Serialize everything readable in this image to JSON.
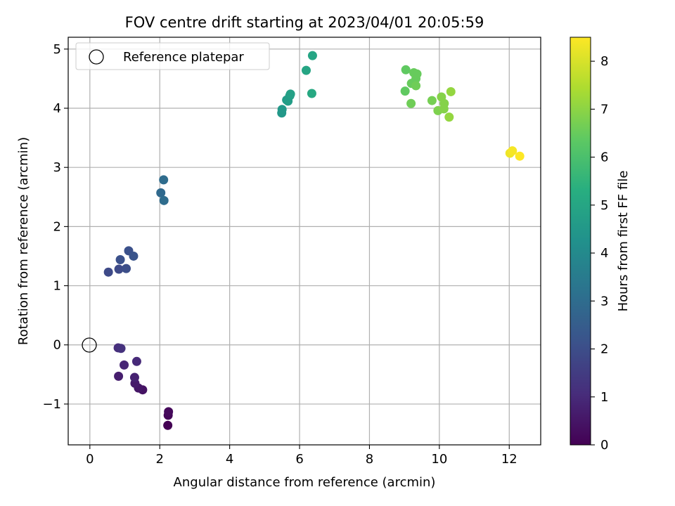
{
  "chart_data": {
    "type": "scatter",
    "title": "FOV centre drift starting at 2023/04/01 20:05:59",
    "xlabel": "Angular distance from reference (arcmin)",
    "ylabel": "Rotation from reference (arcmin)",
    "xlim": [
      -0.62,
      12.9
    ],
    "ylim": [
      -1.69,
      5.2
    ],
    "xticks": [
      0,
      2,
      4,
      6,
      8,
      10,
      12
    ],
    "xtick_labels": [
      "0",
      "2",
      "4",
      "6",
      "8",
      "10",
      "12"
    ],
    "yticks": [
      -1,
      0,
      1,
      2,
      3,
      4,
      5
    ],
    "ytick_labels": [
      "−1",
      "0",
      "1",
      "2",
      "3",
      "4",
      "5"
    ],
    "grid": true,
    "legend": {
      "placement": "top-left",
      "entries": [
        "Reference platepar"
      ]
    },
    "reference_point": {
      "x": 0,
      "y": 0,
      "marker": "open-circle"
    },
    "colorbar": {
      "label": "Hours from first FF file",
      "range": [
        0,
        8.5
      ],
      "ticks": [
        0,
        1,
        2,
        3,
        4,
        5,
        6,
        7,
        8
      ],
      "colormap": "viridis"
    },
    "points": [
      {
        "x": 2.23,
        "y": -1.36,
        "c": 0.0
      },
      {
        "x": 2.24,
        "y": -1.19,
        "c": 0.1
      },
      {
        "x": 2.25,
        "y": -1.13,
        "c": 0.2
      },
      {
        "x": 1.51,
        "y": -0.76,
        "c": 0.4
      },
      {
        "x": 1.39,
        "y": -0.73,
        "c": 0.5
      },
      {
        "x": 1.29,
        "y": -0.65,
        "c": 0.6
      },
      {
        "x": 0.82,
        "y": -0.53,
        "c": 0.7
      },
      {
        "x": 1.28,
        "y": -0.55,
        "c": 0.8
      },
      {
        "x": 0.98,
        "y": -0.34,
        "c": 0.9
      },
      {
        "x": 1.34,
        "y": -0.28,
        "c": 1.0
      },
      {
        "x": 0.81,
        "y": -0.05,
        "c": 1.1
      },
      {
        "x": 0.89,
        "y": -0.06,
        "c": 1.2
      },
      {
        "x": 0.53,
        "y": 1.23,
        "c": 1.9
      },
      {
        "x": 0.83,
        "y": 1.28,
        "c": 1.9
      },
      {
        "x": 1.04,
        "y": 1.29,
        "c": 2.0
      },
      {
        "x": 0.87,
        "y": 1.44,
        "c": 2.1
      },
      {
        "x": 1.11,
        "y": 1.59,
        "c": 2.1
      },
      {
        "x": 1.25,
        "y": 1.5,
        "c": 2.2
      },
      {
        "x": 2.03,
        "y": 2.57,
        "c": 2.9
      },
      {
        "x": 2.12,
        "y": 2.44,
        "c": 3.0
      },
      {
        "x": 2.11,
        "y": 2.79,
        "c": 3.0
      },
      {
        "x": 5.49,
        "y": 3.92,
        "c": 4.5
      },
      {
        "x": 5.5,
        "y": 3.98,
        "c": 4.5
      },
      {
        "x": 5.63,
        "y": 4.14,
        "c": 4.6
      },
      {
        "x": 5.67,
        "y": 4.12,
        "c": 4.7
      },
      {
        "x": 5.72,
        "y": 4.21,
        "c": 4.7
      },
      {
        "x": 5.74,
        "y": 4.24,
        "c": 4.8
      },
      {
        "x": 6.19,
        "y": 4.64,
        "c": 5.0
      },
      {
        "x": 6.37,
        "y": 4.89,
        "c": 5.0
      },
      {
        "x": 6.35,
        "y": 4.25,
        "c": 5.1
      },
      {
        "x": 9.04,
        "y": 4.65,
        "c": 6.4
      },
      {
        "x": 9.02,
        "y": 4.29,
        "c": 6.4
      },
      {
        "x": 9.2,
        "y": 4.42,
        "c": 6.5
      },
      {
        "x": 9.27,
        "y": 4.6,
        "c": 6.5
      },
      {
        "x": 9.33,
        "y": 4.5,
        "c": 6.5
      },
      {
        "x": 9.36,
        "y": 4.58,
        "c": 6.5
      },
      {
        "x": 9.33,
        "y": 4.38,
        "c": 6.6
      },
      {
        "x": 9.19,
        "y": 4.08,
        "c": 6.6
      },
      {
        "x": 9.79,
        "y": 4.13,
        "c": 6.7
      },
      {
        "x": 9.96,
        "y": 3.96,
        "c": 6.8
      },
      {
        "x": 10.06,
        "y": 4.19,
        "c": 6.9
      },
      {
        "x": 10.14,
        "y": 4.08,
        "c": 6.9
      },
      {
        "x": 10.13,
        "y": 3.99,
        "c": 6.9
      },
      {
        "x": 10.33,
        "y": 4.28,
        "c": 7.1
      },
      {
        "x": 10.28,
        "y": 3.85,
        "c": 7.1
      },
      {
        "x": 12.02,
        "y": 3.24,
        "c": 8.3
      },
      {
        "x": 12.09,
        "y": 3.28,
        "c": 8.4
      },
      {
        "x": 12.3,
        "y": 3.19,
        "c": 8.5
      }
    ]
  }
}
